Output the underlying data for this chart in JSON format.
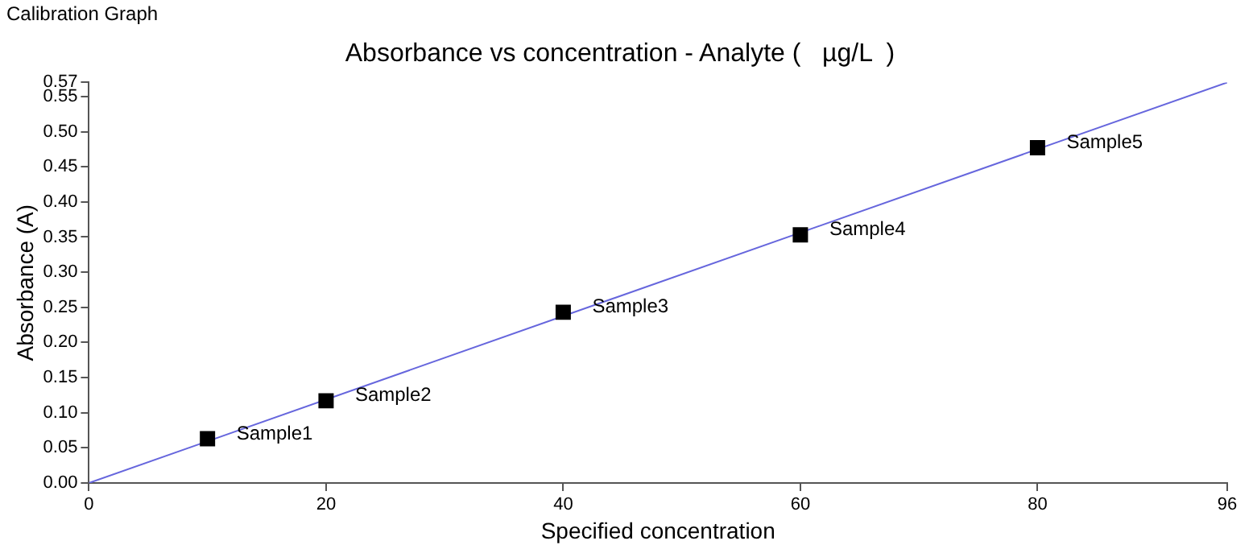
{
  "chart_data": {
    "type": "scatter",
    "title": "Absorbance vs concentration - Analyte (   µg/L  )",
    "xlabel": "Specified concentration",
    "ylabel": "Absorbance (A)",
    "x": [
      10,
      20,
      40,
      60,
      80
    ],
    "series": [
      {
        "type": "scatter",
        "color": "#000000",
        "marker": "square",
        "values": [
          0.063,
          0.117,
          0.243,
          0.353,
          0.477
        ]
      },
      {
        "type": "line",
        "color": "#6666dd",
        "x": [
          0,
          96
        ],
        "values": [
          0,
          0.57
        ],
        "marker": "none"
      }
    ],
    "xlim": [
      0,
      96
    ],
    "xticks": [
      0,
      20,
      40,
      60,
      80,
      96
    ],
    "ylim": [
      0,
      0.57
    ],
    "yticks": [
      {
        "value": 0,
        "label": "0.00"
      },
      {
        "value": 0.05,
        "label": "0.05"
      },
      {
        "value": 0.1,
        "label": "0.10"
      },
      {
        "value": 0.15,
        "label": "0.15"
      },
      {
        "value": 0.2,
        "label": "0.20"
      },
      {
        "value": 0.25,
        "label": "0.25"
      },
      {
        "value": 0.3,
        "label": "0.30"
      },
      {
        "value": 0.35,
        "label": "0.35"
      },
      {
        "value": 0.4,
        "label": "0.40"
      },
      {
        "value": 0.45,
        "label": "0.45"
      },
      {
        "value": 0.5,
        "label": "0.50"
      },
      {
        "value": 0.55,
        "label": "0.55"
      },
      {
        "value": 0.57,
        "label": "0.57"
      }
    ],
    "grid": false,
    "legend": false,
    "annotations": [
      "Calibration Graph",
      {
        "text": "Sample1",
        "x": 10,
        "y": 0.063
      },
      {
        "text": "Sample2",
        "x": 20,
        "y": 0.117
      },
      {
        "text": "Sample3",
        "x": 40,
        "y": 0.243
      },
      {
        "text": "Sample4",
        "x": 60,
        "y": 0.353
      },
      {
        "text": "Sample5",
        "x": 80,
        "y": 0.477
      }
    ]
  }
}
